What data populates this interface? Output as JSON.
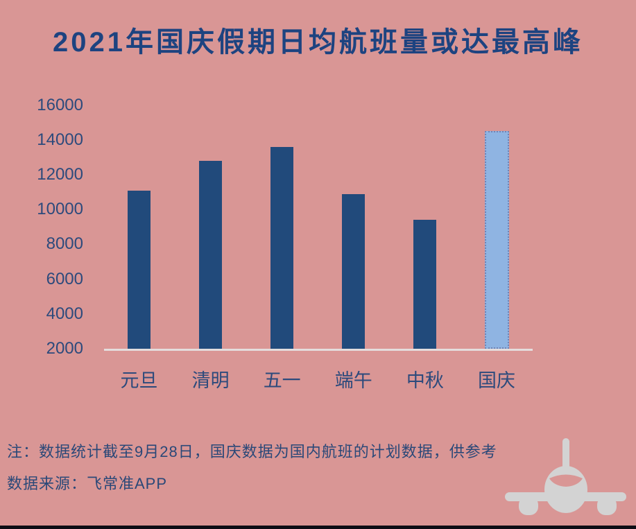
{
  "title": "2021年国庆假期日均航班量或达最高峰",
  "notes": {
    "line1": "注：数据统计截至9月28日，国庆数据为国内航班的计划数据，供参考",
    "line2": "数据来源：飞常准APP"
  },
  "icons": {
    "airplane": "airplane-front-icon"
  },
  "colors": {
    "background": "#D99695",
    "bar": "#214A7B",
    "highlight_bar_fill": "#8FB4E2",
    "highlight_bar_border": "#7083B5",
    "title_text": "#1D4380",
    "axis_text": "#2C4A7C",
    "note_text": "#2A4878",
    "axis_line": "#E4DDDD",
    "airplane": "#D3D3D3",
    "bottom_strip": "#0D0D15"
  },
  "chart_data": {
    "type": "bar",
    "title": "2021年国庆假期日均航班量或达最高峰",
    "categories": [
      "元旦",
      "清明",
      "五一",
      "端午",
      "中秋",
      "国庆"
    ],
    "values": [
      11100,
      12800,
      13600,
      10900,
      9400,
      14500
    ],
    "highlight_index": 5,
    "highlight_meaning": "国庆 bar is forecast/planned data, drawn light blue with dotted outline",
    "xlabel": "",
    "ylabel": "",
    "ylim": [
      2000,
      16000
    ],
    "yticks": [
      16000,
      14000,
      12000,
      10000,
      8000,
      6000,
      4000,
      2000
    ],
    "grid": false,
    "legend": false
  }
}
